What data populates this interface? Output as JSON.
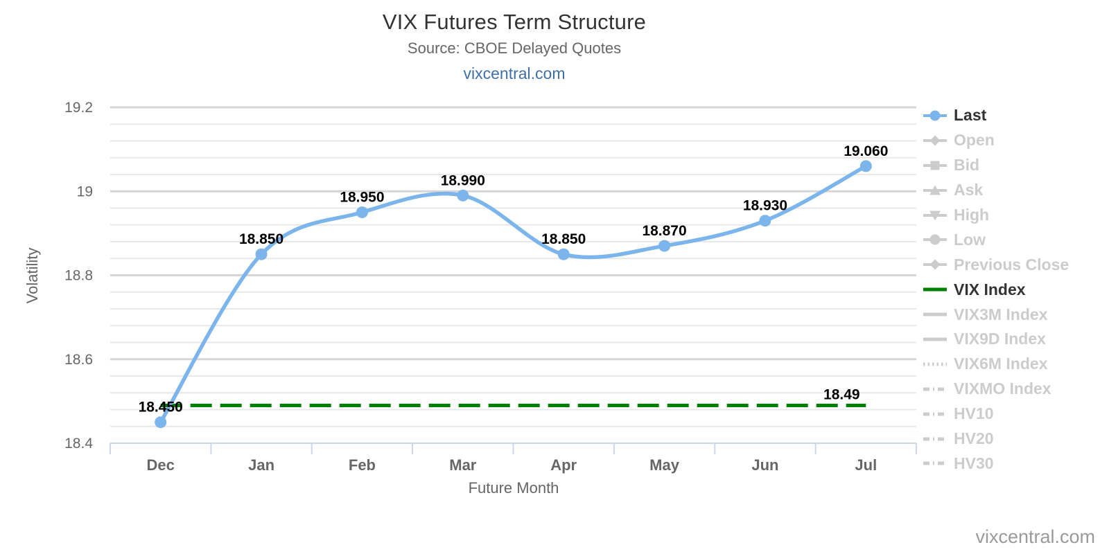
{
  "header": {
    "title": "VIX Futures Term Structure",
    "subtitle": "Source: CBOE Delayed Quotes",
    "link": "vixcentral.com"
  },
  "watermark": "vixcentral.com",
  "colors": {
    "last_series": "#7cb5ec",
    "vix_index_line": "#008000",
    "grid_minor": "#e8e8e8",
    "grid_major": "#d6d6d6",
    "axis_line": "#ccd6eb",
    "axis_text": "#666666",
    "data_label_text": "#000000",
    "legend_active_text": "#333333",
    "legend_disabled": "#cccccc",
    "link_blue": "#3e6fa9",
    "watermark_gray": "#9a9a9a"
  },
  "chart_data": {
    "type": "line",
    "title": "VIX Futures Term Structure",
    "subtitle": "Source: CBOE Delayed Quotes",
    "xlabel": "Future Month",
    "ylabel": "Volatility",
    "categories": [
      "Dec",
      "Jan",
      "Feb",
      "Mar",
      "Apr",
      "May",
      "Jun",
      "Jul"
    ],
    "ylim": [
      18.4,
      19.2
    ],
    "y_major_ticks": [
      18.4,
      18.6,
      18.8,
      19,
      19.2
    ],
    "y_tick_labels": [
      "18.4",
      "18.6",
      "18.8",
      "19",
      "19.2"
    ],
    "minor_tick_interval": 0.04,
    "grid": true,
    "legend_position": "right",
    "series": [
      {
        "name": "Last",
        "type": "spline",
        "color": "#7cb5ec",
        "values": [
          18.45,
          18.85,
          18.95,
          18.99,
          18.85,
          18.87,
          18.93,
          19.06
        ],
        "data_labels": [
          "18.450",
          "18.850",
          "18.950",
          "18.990",
          "18.850",
          "18.870",
          "18.930",
          "19.060"
        ]
      },
      {
        "name": "VIX Index",
        "type": "flat-dashed",
        "color": "#008000",
        "value": 18.49,
        "end_label": "18.49"
      }
    ]
  },
  "legend": {
    "items": [
      {
        "label": "Last",
        "marker": "line-circle",
        "active": true,
        "color": "#7cb5ec"
      },
      {
        "label": "Open",
        "marker": "line-diamond",
        "active": false
      },
      {
        "label": "Bid",
        "marker": "line-square",
        "active": false
      },
      {
        "label": "Ask",
        "marker": "line-triangle-up",
        "active": false
      },
      {
        "label": "High",
        "marker": "line-triangle-down",
        "active": false
      },
      {
        "label": "Low",
        "marker": "line-circle",
        "active": false
      },
      {
        "label": "Previous Close",
        "marker": "line-diamond",
        "active": false
      },
      {
        "label": "VIX Index",
        "marker": "solid-line",
        "active": true,
        "color": "#008000"
      },
      {
        "label": "VIX3M Index",
        "marker": "solid-line",
        "active": false
      },
      {
        "label": "VIX9D Index",
        "marker": "solid-line",
        "active": false
      },
      {
        "label": "VIX6M Index",
        "marker": "dotted-line",
        "active": false
      },
      {
        "label": "VIXMO Index",
        "marker": "dashdot-line",
        "active": false
      },
      {
        "label": "HV10",
        "marker": "dashdot-line",
        "active": false
      },
      {
        "label": "HV20",
        "marker": "dashdot-line",
        "active": false
      },
      {
        "label": "HV30",
        "marker": "dashdot-line",
        "active": false
      }
    ]
  }
}
